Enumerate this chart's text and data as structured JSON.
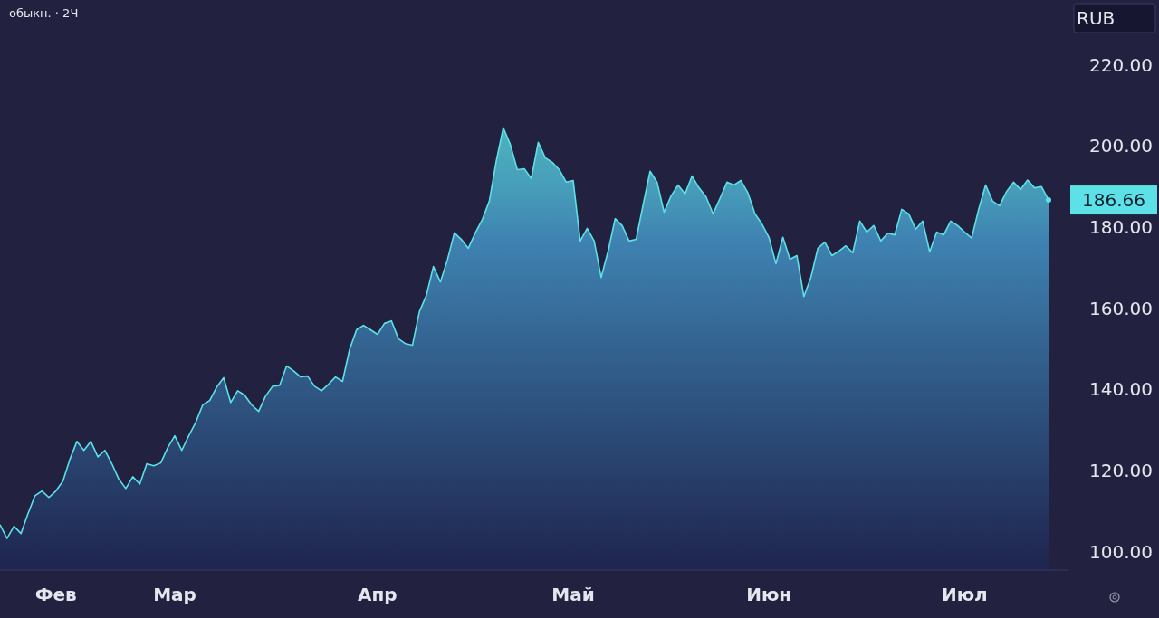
{
  "chart_data": {
    "type": "area",
    "title": "обыкн. · 2Ч",
    "categories": [
      null,
      null,
      null,
      null,
      null,
      null,
      null,
      null,
      "Фев",
      null,
      null,
      null,
      null,
      null,
      null,
      null,
      null,
      null,
      null,
      null,
      null,
      null,
      null,
      null,
      null,
      "Мар",
      null,
      null,
      null,
      null,
      null,
      null,
      null,
      null,
      null,
      null,
      null,
      null,
      null,
      null,
      null,
      null,
      null,
      null,
      null,
      null,
      null,
      null,
      null,
      null,
      null,
      null,
      null,
      null,
      "Апр",
      null,
      null,
      null,
      null,
      null,
      null,
      null,
      null,
      null,
      null,
      null,
      null,
      null,
      null,
      null,
      null,
      null,
      null,
      null,
      null,
      null,
      null,
      null,
      null,
      null,
      null,
      null,
      "Май",
      null,
      null,
      null,
      null,
      null,
      null,
      null,
      null,
      null,
      null,
      null,
      null,
      null,
      null,
      null,
      null,
      null,
      null,
      null,
      null,
      null,
      null,
      null,
      null,
      null,
      null,
      null,
      "Июн",
      null,
      null,
      null,
      null,
      null,
      null,
      null,
      null,
      null,
      null,
      null,
      null,
      null,
      null,
      null,
      null,
      null,
      null,
      null,
      null,
      null,
      null,
      null,
      null,
      null,
      null,
      null,
      "Июл",
      null,
      null,
      null,
      null,
      null,
      null,
      null,
      null,
      null,
      null,
      null,
      null
    ],
    "ylim": [
      95.5,
      236
    ],
    "yticks": [
      {
        "value": 100,
        "label": "100.00"
      },
      {
        "value": 120,
        "label": "120.00"
      },
      {
        "value": 140,
        "label": "140.00"
      },
      {
        "value": 160,
        "label": "160.00"
      },
      {
        "value": 180,
        "label": "180.00"
      },
      {
        "value": 200,
        "label": "200.00"
      },
      {
        "value": 220,
        "label": "220.00"
      }
    ],
    "grid": false,
    "annotations": [
      "186.66",
      "RUB"
    ],
    "series": [
      {
        "color": "#5ce1e6",
        "values": [
          106.7,
          103.3,
          106.3,
          104.5,
          109.4,
          113.8,
          115.0,
          113.4,
          115.0,
          117.4,
          122.8,
          127.2,
          125.0,
          127.2,
          123.4,
          125.0,
          121.7,
          117.9,
          115.6,
          118.5,
          116.7,
          121.7,
          121.2,
          121.9,
          125.7,
          128.6,
          125.0,
          128.6,
          131.9,
          136.2,
          137.3,
          140.6,
          142.9,
          136.8,
          139.7,
          138.6,
          136.2,
          134.6,
          138.4,
          140.8,
          141.0,
          145.8,
          144.6,
          143.1,
          143.3,
          140.8,
          139.7,
          141.3,
          143.1,
          142.0,
          149.8,
          154.7,
          155.8,
          154.7,
          153.6,
          156.3,
          156.9,
          152.5,
          151.3,
          150.9,
          159.2,
          163.2,
          170.3,
          166.5,
          171.9,
          178.6,
          177.0,
          174.8,
          178.6,
          181.9,
          186.4,
          196.4,
          204.5,
          200.4,
          194.2,
          194.4,
          192.0,
          200.9,
          197.1,
          196.0,
          194.2,
          191.1,
          191.5,
          176.6,
          179.7,
          176.6,
          167.6,
          174.1,
          182.1,
          180.4,
          176.6,
          177.0,
          185.5,
          193.8,
          191.1,
          183.7,
          187.7,
          190.4,
          188.2,
          192.6,
          189.7,
          187.5,
          183.3,
          187.1,
          191.1,
          190.4,
          191.5,
          188.4,
          183.3,
          180.8,
          177.5,
          171.0,
          177.5,
          172.1,
          173.0,
          162.9,
          167.6,
          174.8,
          176.3,
          173.0,
          174.1,
          175.4,
          173.7,
          181.5,
          178.8,
          180.4,
          176.6,
          178.5,
          178.1,
          184.4,
          183.3,
          179.5,
          181.5,
          173.9,
          178.8,
          178.1,
          181.5,
          180.4,
          178.8,
          177.3,
          184.4,
          190.4,
          186.4,
          185.3,
          188.8,
          191.1,
          189.3,
          191.6,
          189.7,
          190.0,
          186.7
        ]
      }
    ]
  }
}
